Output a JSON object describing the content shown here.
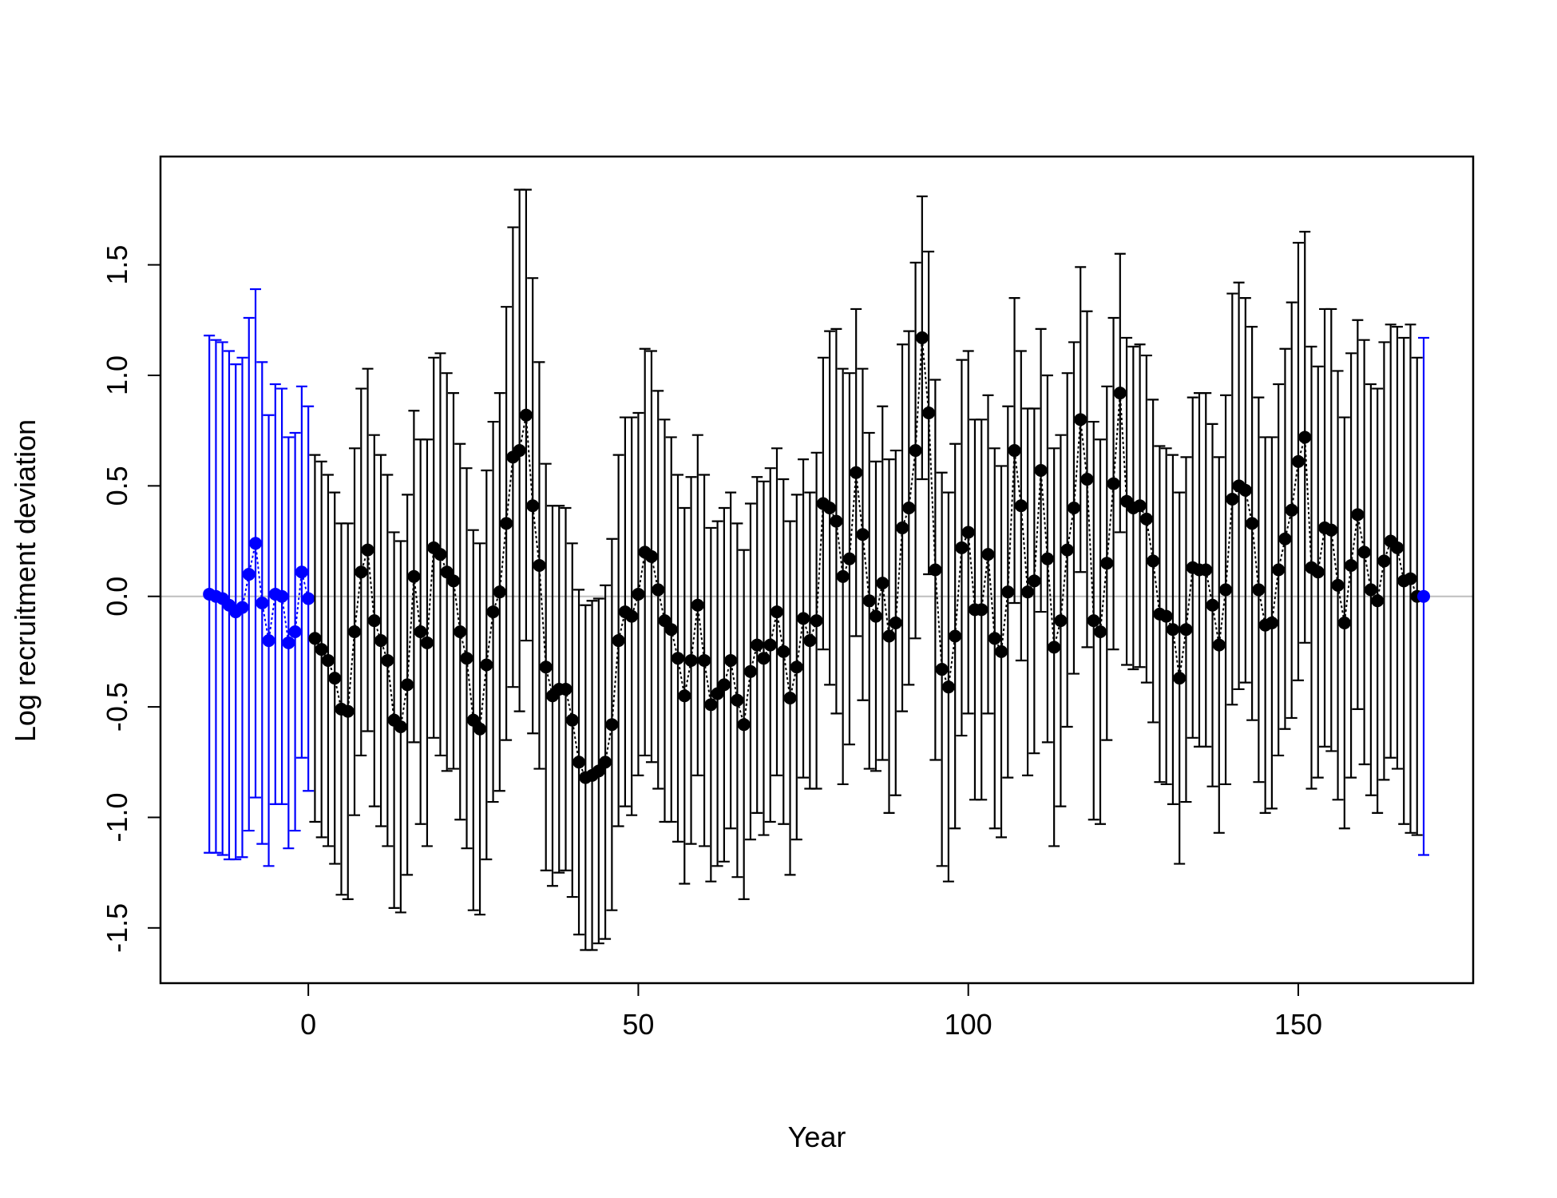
{
  "chart_data": {
    "type": "errorbar",
    "xlabel": "Year",
    "ylabel": "Log recruitment deviation",
    "xlim": [
      -22.4,
      176.5
    ],
    "ylim": [
      -1.75,
      1.99
    ],
    "xticks": [
      0,
      50,
      100,
      150
    ],
    "yticks": [
      -1.5,
      {
        "value": -1.0,
        "label": "-1.0"
      },
      -0.5,
      {
        "value": 0.0,
        "label": "0.0"
      },
      0.5,
      {
        "value": 1.0,
        "label": "1.0"
      },
      1.5
    ],
    "hline": 0,
    "series": [
      {
        "color": "#0000ff",
        "x": [
          -15,
          -14,
          -13,
          -12,
          -11,
          -10,
          -9,
          -8,
          -7,
          -6,
          -5,
          -4,
          -3,
          -2,
          -1,
          0
        ],
        "values": [
          0.01,
          0.0,
          -0.01,
          -0.04,
          -0.07,
          -0.05,
          0.1,
          0.24,
          -0.03,
          -0.2,
          0.01,
          0.0,
          -0.21,
          -0.16,
          0.11,
          -0.01
        ],
        "errors": [
          1.17,
          1.16,
          1.16,
          1.15,
          1.12,
          1.13,
          1.16,
          1.15,
          1.09,
          1.02,
          0.95,
          0.94,
          0.93,
          0.9,
          0.84,
          0.87
        ]
      },
      {
        "color": "#000000",
        "x": [
          1,
          2,
          3,
          4,
          5,
          6,
          7,
          8,
          9,
          10,
          11,
          12,
          13,
          14,
          15,
          16,
          17,
          18,
          19,
          20,
          21,
          22,
          23,
          24,
          25,
          26,
          27,
          28,
          29,
          30,
          31,
          32,
          33,
          34,
          35,
          36,
          37,
          38,
          39,
          40,
          41,
          42,
          43,
          44,
          45,
          46,
          47,
          48,
          49,
          50,
          51,
          52,
          53,
          54,
          55,
          56,
          57,
          58,
          59,
          60,
          61,
          62,
          63,
          64,
          65,
          66,
          67,
          68,
          69,
          70,
          71,
          72,
          73,
          74,
          75,
          76,
          77,
          78,
          79,
          80,
          81,
          82,
          83,
          84,
          85,
          86,
          87,
          88,
          89,
          90,
          91,
          92,
          93,
          94,
          95,
          96,
          97,
          98,
          99,
          100,
          101,
          102,
          103,
          104,
          105,
          106,
          107,
          108,
          109,
          110,
          111,
          112,
          113,
          114,
          115,
          116,
          117,
          118,
          119,
          120,
          121,
          122,
          123,
          124,
          125,
          126,
          127,
          128,
          129,
          130,
          131,
          132,
          133,
          134,
          135,
          136,
          137,
          138,
          139,
          140,
          141,
          142,
          143,
          144,
          145,
          146,
          147,
          148,
          149,
          150,
          151,
          152,
          153,
          154,
          155,
          156,
          157,
          158,
          159,
          160,
          161,
          162,
          163,
          164,
          165,
          166,
          167,
          168
        ],
        "values": [
          -0.19,
          -0.24,
          -0.29,
          -0.37,
          -0.51,
          -0.52,
          -0.16,
          0.11,
          0.21,
          -0.11,
          -0.2,
          -0.29,
          -0.56,
          -0.59,
          -0.4,
          0.09,
          -0.16,
          -0.21,
          0.22,
          0.19,
          0.11,
          0.07,
          -0.16,
          -0.28,
          -0.56,
          -0.6,
          -0.31,
          -0.07,
          0.02,
          0.33,
          0.63,
          0.66,
          0.82,
          0.41,
          0.14,
          -0.32,
          -0.45,
          -0.42,
          -0.42,
          -0.56,
          -0.75,
          -0.82,
          -0.81,
          -0.79,
          -0.75,
          -0.58,
          -0.2,
          -0.07,
          -0.09,
          0.01,
          0.2,
          0.18,
          0.03,
          -0.11,
          -0.15,
          -0.28,
          -0.45,
          -0.29,
          -0.04,
          -0.29,
          -0.49,
          -0.44,
          -0.4,
          -0.29,
          -0.47,
          -0.58,
          -0.34,
          -0.22,
          -0.28,
          -0.22,
          -0.07,
          -0.25,
          -0.46,
          -0.32,
          -0.1,
          -0.2,
          -0.11,
          0.42,
          0.4,
          0.34,
          0.09,
          0.17,
          0.56,
          0.28,
          -0.02,
          -0.09,
          0.06,
          -0.18,
          -0.12,
          0.31,
          0.4,
          0.66,
          1.17,
          0.83,
          0.12,
          -0.33,
          -0.41,
          -0.18,
          0.22,
          0.29,
          -0.06,
          -0.06,
          0.19,
          -0.19,
          -0.25,
          0.02,
          0.66,
          0.41,
          0.02,
          0.07,
          0.57,
          0.17,
          -0.23,
          -0.11,
          0.21,
          0.4,
          0.8,
          0.53,
          -0.11,
          -0.16,
          0.15,
          0.51,
          0.92,
          0.43,
          0.4,
          0.41,
          0.35,
          0.16,
          -0.08,
          -0.09,
          -0.15,
          -0.37,
          -0.15,
          0.13,
          0.12,
          0.12,
          -0.04,
          -0.22,
          0.03,
          0.44,
          0.5,
          0.48,
          0.33,
          0.03,
          -0.13,
          -0.12,
          0.12,
          0.26,
          0.39,
          0.61,
          0.72,
          0.13,
          0.11,
          0.31,
          0.3,
          0.05,
          -0.12,
          0.14,
          0.37,
          0.2,
          0.03,
          -0.02,
          0.16,
          0.25,
          0.22,
          0.07,
          0.08,
          0.0
        ],
        "errors": [
          0.83,
          0.85,
          0.84,
          0.84,
          0.84,
          0.85,
          0.83,
          0.83,
          0.82,
          0.84,
          0.84,
          0.84,
          0.85,
          0.84,
          0.86,
          0.75,
          0.87,
          0.92,
          0.86,
          0.91,
          0.9,
          0.85,
          0.85,
          0.86,
          0.86,
          0.84,
          0.88,
          0.86,
          0.9,
          0.98,
          1.04,
          1.18,
          1.02,
          1.03,
          0.92,
          0.92,
          0.86,
          0.83,
          0.82,
          0.8,
          0.78,
          0.78,
          0.79,
          0.78,
          0.8,
          0.84,
          0.84,
          0.88,
          0.9,
          0.82,
          0.92,
          0.93,
          0.9,
          0.91,
          0.87,
          0.83,
          0.85,
          0.83,
          0.77,
          0.84,
          0.8,
          0.78,
          0.8,
          0.76,
          0.8,
          0.79,
          0.76,
          0.76,
          0.8,
          0.8,
          0.74,
          0.78,
          0.8,
          0.78,
          0.72,
          0.67,
          0.76,
          0.66,
          0.8,
          0.87,
          0.94,
          0.84,
          0.74,
          0.75,
          0.76,
          0.7,
          0.8,
          0.8,
          0.78,
          0.83,
          0.8,
          0.85,
          0.64,
          0.73,
          0.86,
          0.89,
          0.88,
          0.87,
          0.85,
          0.82,
          0.86,
          0.86,
          0.72,
          0.86,
          0.84,
          0.84,
          0.69,
          0.7,
          0.83,
          0.78,
          0.64,
          0.83,
          0.9,
          0.84,
          0.8,
          0.75,
          0.69,
          0.76,
          0.9,
          0.87,
          0.8,
          0.75,
          0.63,
          0.74,
          0.73,
          0.73,
          0.74,
          0.73,
          0.76,
          0.76,
          0.79,
          0.84,
          0.78,
          0.77,
          0.8,
          0.8,
          0.82,
          0.85,
          0.88,
          0.93,
          0.92,
          0.87,
          0.89,
          0.87,
          0.85,
          0.84,
          0.84,
          0.86,
          0.94,
          0.99,
          0.93,
          1.0,
          0.93,
          0.99,
          1.0,
          0.97,
          0.93,
          0.96,
          0.88,
          0.96,
          0.93,
          0.96,
          0.99,
          0.98,
          1.0,
          1.1,
          1.15,
          1.08
        ]
      },
      {
        "color": "#0000ff",
        "x": [
          169
        ],
        "values": [
          0.0
        ],
        "errors": [
          1.17
        ]
      }
    ]
  }
}
